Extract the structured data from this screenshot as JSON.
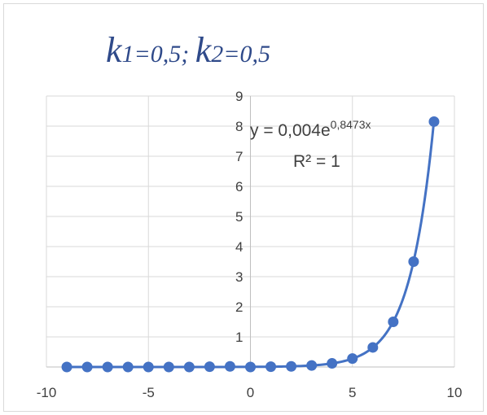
{
  "chart_data": {
    "type": "scatter",
    "title_parts": {
      "k1_letter": "k",
      "k1_rest": "1=0,5; ",
      "k2_letter": "k",
      "k2_rest": "2=0,5"
    },
    "xlabel": "",
    "ylabel": "",
    "xlim": [
      -10,
      10
    ],
    "ylim": [
      0,
      9
    ],
    "x_ticks": [
      "-10",
      "-5",
      "0",
      "5",
      "10"
    ],
    "y_ticks": [
      "1",
      "2",
      "3",
      "4",
      "5",
      "6",
      "7",
      "8",
      "9"
    ],
    "grid": true,
    "series": [
      {
        "x": [
          -9,
          -8,
          -7,
          -6,
          -5,
          -4,
          -3,
          -2,
          -1,
          0,
          1,
          2,
          3,
          4,
          5,
          6,
          7,
          8,
          9
        ],
        "y": [
          0.0,
          0.0,
          0.0,
          0.0,
          0.0,
          0.0,
          0.0,
          0.01,
          0.02,
          0.0,
          0.01,
          0.02,
          0.05,
          0.12,
          0.28,
          0.65,
          1.5,
          3.5,
          8.15
        ],
        "color": "#4472c4"
      }
    ],
    "trendline": {
      "type": "exponential",
      "a": 0.004,
      "b": 0.8473,
      "equation_main": "y = 0,004e",
      "equation_exponent": "0,8473x",
      "r_squared": "R² = 1"
    }
  }
}
